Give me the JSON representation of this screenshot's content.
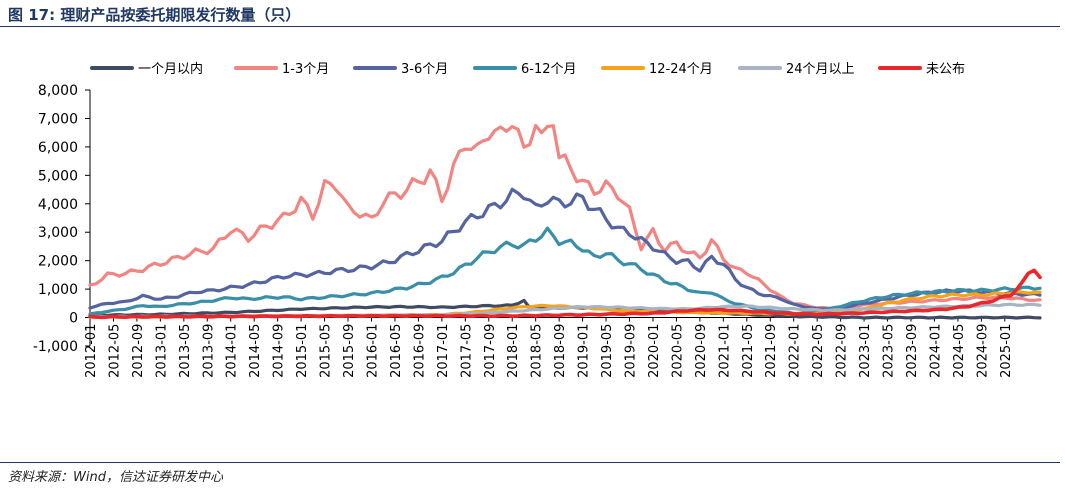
{
  "figure": {
    "label": "图 17:",
    "title": "理财产品按委托期限发行数量（只）",
    "source": "资料来源：Wind，信达证券研发中心"
  },
  "chart_data": {
    "type": "line",
    "title": "理财产品按委托期限发行数量（只）",
    "xlabel": "",
    "ylabel": "",
    "ylim": [
      -1000,
      8000
    ],
    "yticks": [
      -1000,
      0,
      1000,
      2000,
      3000,
      4000,
      5000,
      6000,
      7000,
      8000
    ],
    "ytick_labels": [
      "-1,000",
      "0",
      "1,000",
      "2,000",
      "3,000",
      "4,000",
      "5,000",
      "6,000",
      "7,000",
      "8,000"
    ],
    "x_start": "2012-01",
    "x_months": 163,
    "xtick_labels": [
      "2012-01",
      "2012-05",
      "2012-09",
      "2013-01",
      "2013-05",
      "2013-09",
      "2014-01",
      "2014-05",
      "2014-09",
      "2015-01",
      "2015-05",
      "2015-09",
      "2016-01",
      "2016-05",
      "2016-09",
      "2017-01",
      "2017-05",
      "2017-09",
      "2018-01",
      "2018-05",
      "2018-09",
      "2019-01",
      "2019-05",
      "2019-09",
      "2020-01",
      "2020-05",
      "2020-09",
      "2021-01",
      "2021-05",
      "2021-09",
      "2022-01",
      "2022-05",
      "2022-09",
      "2023-01",
      "2023-05",
      "2023-09",
      "2024-01",
      "2024-05",
      "2024-09",
      "2025-01"
    ],
    "legend_position": "top",
    "series": [
      {
        "name": "一个月以内",
        "color": "#3f4a63",
        "width": 3.2,
        "anchors": [
          [
            0,
            80
          ],
          [
            12,
            110
          ],
          [
            24,
            180
          ],
          [
            36,
            300
          ],
          [
            48,
            370
          ],
          [
            54,
            380
          ],
          [
            60,
            360
          ],
          [
            66,
            400
          ],
          [
            72,
            430
          ],
          [
            74,
            600
          ],
          [
            75,
            320
          ],
          [
            84,
            350
          ],
          [
            90,
            320
          ],
          [
            96,
            250
          ],
          [
            102,
            200
          ],
          [
            108,
            150
          ],
          [
            114,
            90
          ],
          [
            120,
            40
          ],
          [
            132,
            0
          ],
          [
            162,
            0
          ]
        ]
      },
      {
        "name": "1-3个月",
        "color": "#f28482",
        "width": 3.2,
        "anchors": [
          [
            0,
            1100
          ],
          [
            3,
            1500
          ],
          [
            6,
            1550
          ],
          [
            9,
            1700
          ],
          [
            12,
            1900
          ],
          [
            15,
            2100
          ],
          [
            18,
            2300
          ],
          [
            21,
            2400
          ],
          [
            24,
            3100
          ],
          [
            27,
            2800
          ],
          [
            30,
            3200
          ],
          [
            33,
            3500
          ],
          [
            36,
            4100
          ],
          [
            38,
            3600
          ],
          [
            40,
            4600
          ],
          [
            42,
            4700
          ],
          [
            44,
            3800
          ],
          [
            46,
            3700
          ],
          [
            48,
            3400
          ],
          [
            50,
            4100
          ],
          [
            52,
            4300
          ],
          [
            54,
            4500
          ],
          [
            56,
            4800
          ],
          [
            58,
            5100
          ],
          [
            60,
            4200
          ],
          [
            62,
            5200
          ],
          [
            64,
            6200
          ],
          [
            66,
            5800
          ],
          [
            68,
            6600
          ],
          [
            70,
            6400
          ],
          [
            72,
            7000
          ],
          [
            74,
            5800
          ],
          [
            76,
            6900
          ],
          [
            77,
            6200
          ],
          [
            79,
            7100
          ],
          [
            80,
            5600
          ],
          [
            82,
            5300
          ],
          [
            84,
            4700
          ],
          [
            86,
            4500
          ],
          [
            88,
            4600
          ],
          [
            90,
            4400
          ],
          [
            92,
            3700
          ],
          [
            94,
            2500
          ],
          [
            96,
            3000
          ],
          [
            98,
            2400
          ],
          [
            100,
            2600
          ],
          [
            102,
            2300
          ],
          [
            104,
            2100
          ],
          [
            106,
            2700
          ],
          [
            108,
            2100
          ],
          [
            110,
            1700
          ],
          [
            112,
            1600
          ],
          [
            114,
            1300
          ],
          [
            116,
            1000
          ],
          [
            118,
            700
          ],
          [
            120,
            500
          ],
          [
            124,
            350
          ],
          [
            128,
            300
          ],
          [
            132,
            450
          ],
          [
            136,
            500
          ],
          [
            140,
            550
          ],
          [
            144,
            600
          ],
          [
            148,
            650
          ],
          [
            152,
            700
          ],
          [
            156,
            700
          ],
          [
            162,
            600
          ]
        ]
      },
      {
        "name": "3-6个月",
        "color": "#5564a0",
        "width": 3.2,
        "anchors": [
          [
            0,
            350
          ],
          [
            3,
            500
          ],
          [
            6,
            550
          ],
          [
            9,
            750
          ],
          [
            12,
            650
          ],
          [
            15,
            750
          ],
          [
            18,
            900
          ],
          [
            21,
            950
          ],
          [
            24,
            1050
          ],
          [
            27,
            1150
          ],
          [
            30,
            1300
          ],
          [
            33,
            1450
          ],
          [
            36,
            1500
          ],
          [
            39,
            1550
          ],
          [
            42,
            1650
          ],
          [
            45,
            1700
          ],
          [
            48,
            1800
          ],
          [
            51,
            1950
          ],
          [
            54,
            2200
          ],
          [
            57,
            2450
          ],
          [
            60,
            2700
          ],
          [
            63,
            3200
          ],
          [
            66,
            3600
          ],
          [
            69,
            3900
          ],
          [
            72,
            4300
          ],
          [
            74,
            4400
          ],
          [
            76,
            3800
          ],
          [
            78,
            4200
          ],
          [
            80,
            4000
          ],
          [
            82,
            4100
          ],
          [
            84,
            4200
          ],
          [
            86,
            3800
          ],
          [
            88,
            3500
          ],
          [
            90,
            3100
          ],
          [
            92,
            3000
          ],
          [
            94,
            2700
          ],
          [
            96,
            2500
          ],
          [
            98,
            2200
          ],
          [
            100,
            2000
          ],
          [
            102,
            1950
          ],
          [
            104,
            1700
          ],
          [
            106,
            2100
          ],
          [
            108,
            1900
          ],
          [
            110,
            1350
          ],
          [
            112,
            1050
          ],
          [
            114,
            850
          ],
          [
            116,
            750
          ],
          [
            118,
            650
          ],
          [
            120,
            450
          ],
          [
            124,
            300
          ],
          [
            128,
            350
          ],
          [
            132,
            500
          ],
          [
            136,
            650
          ],
          [
            140,
            800
          ],
          [
            144,
            900
          ],
          [
            148,
            950
          ],
          [
            152,
            900
          ],
          [
            156,
            850
          ],
          [
            162,
            800
          ]
        ]
      },
      {
        "name": "6-12个月",
        "color": "#3a8fa8",
        "width": 3.2,
        "anchors": [
          [
            0,
            120
          ],
          [
            3,
            220
          ],
          [
            6,
            300
          ],
          [
            9,
            420
          ],
          [
            12,
            380
          ],
          [
            15,
            460
          ],
          [
            18,
            520
          ],
          [
            21,
            600
          ],
          [
            24,
            700
          ],
          [
            27,
            650
          ],
          [
            30,
            700
          ],
          [
            33,
            720
          ],
          [
            36,
            650
          ],
          [
            39,
            700
          ],
          [
            42,
            750
          ],
          [
            45,
            800
          ],
          [
            48,
            850
          ],
          [
            51,
            950
          ],
          [
            54,
            1050
          ],
          [
            57,
            1200
          ],
          [
            60,
            1400
          ],
          [
            63,
            1700
          ],
          [
            66,
            2100
          ],
          [
            69,
            2400
          ],
          [
            72,
            2600
          ],
          [
            74,
            2500
          ],
          [
            76,
            2800
          ],
          [
            78,
            3000
          ],
          [
            80,
            2700
          ],
          [
            82,
            2600
          ],
          [
            84,
            2450
          ],
          [
            86,
            2100
          ],
          [
            88,
            2300
          ],
          [
            90,
            2000
          ],
          [
            92,
            1900
          ],
          [
            94,
            1700
          ],
          [
            96,
            1500
          ],
          [
            98,
            1300
          ],
          [
            100,
            1150
          ],
          [
            102,
            1000
          ],
          [
            104,
            850
          ],
          [
            106,
            900
          ],
          [
            108,
            650
          ],
          [
            110,
            500
          ],
          [
            112,
            400
          ],
          [
            114,
            300
          ],
          [
            116,
            250
          ],
          [
            118,
            200
          ],
          [
            120,
            150
          ],
          [
            124,
            200
          ],
          [
            128,
            400
          ],
          [
            132,
            600
          ],
          [
            136,
            750
          ],
          [
            140,
            850
          ],
          [
            144,
            900
          ],
          [
            148,
            950
          ],
          [
            152,
            950
          ],
          [
            156,
            1000
          ],
          [
            162,
            1050
          ]
        ]
      },
      {
        "name": "12-24个月",
        "color": "#f7a21b",
        "width": 3.2,
        "anchors": [
          [
            0,
            20
          ],
          [
            12,
            30
          ],
          [
            24,
            50
          ],
          [
            36,
            60
          ],
          [
            48,
            70
          ],
          [
            60,
            100
          ],
          [
            66,
            200
          ],
          [
            70,
            300
          ],
          [
            74,
            380
          ],
          [
            78,
            420
          ],
          [
            82,
            380
          ],
          [
            86,
            320
          ],
          [
            90,
            250
          ],
          [
            96,
            200
          ],
          [
            102,
            180
          ],
          [
            108,
            160
          ],
          [
            114,
            150
          ],
          [
            120,
            130
          ],
          [
            126,
            150
          ],
          [
            132,
            300
          ],
          [
            136,
            500
          ],
          [
            140,
            650
          ],
          [
            144,
            750
          ],
          [
            148,
            800
          ],
          [
            152,
            800
          ],
          [
            156,
            850
          ],
          [
            160,
            900
          ],
          [
            162,
            850
          ]
        ]
      },
      {
        "name": "24个月以上",
        "color": "#a9b4c2",
        "width": 3.2,
        "anchors": [
          [
            0,
            30
          ],
          [
            12,
            40
          ],
          [
            24,
            50
          ],
          [
            36,
            60
          ],
          [
            48,
            70
          ],
          [
            60,
            90
          ],
          [
            66,
            140
          ],
          [
            72,
            220
          ],
          [
            78,
            300
          ],
          [
            84,
            380
          ],
          [
            90,
            360
          ],
          [
            96,
            320
          ],
          [
            102,
            300
          ],
          [
            108,
            380
          ],
          [
            112,
            400
          ],
          [
            116,
            350
          ],
          [
            120,
            300
          ],
          [
            126,
            250
          ],
          [
            132,
            300
          ],
          [
            140,
            350
          ],
          [
            148,
            400
          ],
          [
            156,
            450
          ],
          [
            162,
            450
          ]
        ]
      },
      {
        "name": "未公布",
        "color": "#e8282c",
        "width": 3.6,
        "anchors": [
          [
            0,
            20
          ],
          [
            12,
            30
          ],
          [
            24,
            40
          ],
          [
            36,
            50
          ],
          [
            48,
            60
          ],
          [
            60,
            60
          ],
          [
            72,
            60
          ],
          [
            84,
            100
          ],
          [
            96,
            150
          ],
          [
            102,
            250
          ],
          [
            106,
            280
          ],
          [
            110,
            250
          ],
          [
            114,
            200
          ],
          [
            118,
            150
          ],
          [
            124,
            120
          ],
          [
            130,
            150
          ],
          [
            136,
            200
          ],
          [
            142,
            250
          ],
          [
            146,
            300
          ],
          [
            150,
            400
          ],
          [
            154,
            600
          ],
          [
            157,
            800
          ],
          [
            159,
            1200
          ],
          [
            160,
            1550
          ],
          [
            161,
            1750
          ],
          [
            162,
            1400
          ]
        ]
      }
    ]
  },
  "legend_items": [
    "一个月以内",
    "1-3个月",
    "3-6个月",
    "6-12个月",
    "12-24个月",
    "24个月以上",
    "未公布"
  ]
}
